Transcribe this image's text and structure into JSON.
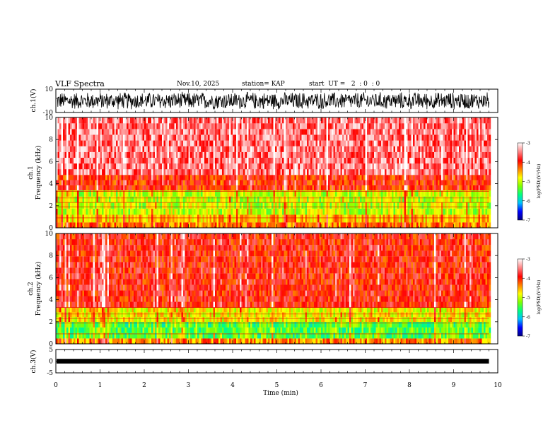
{
  "header": {
    "title": "VLF Spectra",
    "date": "Nov.10, 2025",
    "station": "station= KAP",
    "start_ut": "start  UT =   2  : 0  : 0"
  },
  "colors": {
    "colorbar_stops": [
      "#000080",
      "#0000ff",
      "#00c0ff",
      "#00ff80",
      "#80ff00",
      "#ffff00",
      "#ff8000",
      "#ff0000",
      "#ff8080",
      "#ffffff"
    ]
  },
  "chart_data": [
    {
      "id": "ch1-waveform",
      "type": "line",
      "ylabel": "ch.1(V)",
      "ylim": [
        -10,
        10
      ],
      "yticks": [
        "10",
        "-10"
      ],
      "xlim": [
        0,
        10
      ],
      "description_level": "dense waveform oscillating roughly between -8 and 8 V over 0 to 9.8 min"
    },
    {
      "id": "ch1-spectrogram",
      "type": "heatmap",
      "ylabel": "ch.1\nFrequency (kHz)",
      "ylabel_line1": "ch.1",
      "ylabel_line2": "Frequency  (kHz)",
      "ylim": [
        0,
        10
      ],
      "yticks": [
        "0",
        "2",
        "4",
        "6",
        "8",
        "10"
      ],
      "xlim": [
        0,
        10
      ],
      "data_end_min": 9.8,
      "bands": [
        {
          "from_khz": 0.0,
          "to_khz": 0.5,
          "level": -4.3
        },
        {
          "from_khz": 0.5,
          "to_khz": 1.2,
          "level": -4.6
        },
        {
          "from_khz": 1.2,
          "to_khz": 3.4,
          "level": -5.0
        },
        {
          "from_khz": 3.4,
          "to_khz": 4.8,
          "level": -4.0
        },
        {
          "from_khz": 4.8,
          "to_khz": 10.0,
          "level": -3.5
        }
      ],
      "colorbar": {
        "label": "log(PSD)(V²/Hz)",
        "ticks": [
          "-3",
          "-4",
          "-5",
          "-6",
          "-7"
        ],
        "range": [
          -7,
          -3
        ]
      }
    },
    {
      "id": "ch2-spectrogram",
      "type": "heatmap",
      "ylabel_line1": "ch.2",
      "ylabel_line2": "Frequency  (kHz)",
      "ylim": [
        0,
        10
      ],
      "yticks": [
        "0",
        "2",
        "4",
        "6",
        "8",
        "10"
      ],
      "xlim": [
        0,
        10
      ],
      "data_end_min": 9.8,
      "bands": [
        {
          "from_khz": 0.0,
          "to_khz": 0.5,
          "level": -4.4
        },
        {
          "from_khz": 0.5,
          "to_khz": 2.0,
          "level": -5.4
        },
        {
          "from_khz": 2.0,
          "to_khz": 3.3,
          "level": -4.8
        },
        {
          "from_khz": 3.3,
          "to_khz": 10.0,
          "level": -3.9
        }
      ],
      "colorbar": {
        "label": "log(PSD)(V²/Hz)",
        "ticks": [
          "-3",
          "-4",
          "-5",
          "-6",
          "-7"
        ],
        "range": [
          -7,
          -3
        ]
      }
    },
    {
      "id": "ch3-waveform",
      "type": "line",
      "ylabel": "ch.3(V)",
      "ylim": [
        -5,
        5
      ],
      "yticks": [
        "5",
        "0",
        "-5"
      ],
      "xlim": [
        0,
        10
      ],
      "level_v": 0,
      "spread_v": 0.5
    }
  ],
  "xaxis": {
    "label": "Time  (min)",
    "ticks": [
      "0",
      "1",
      "2",
      "3",
      "4",
      "5",
      "6",
      "7",
      "8",
      "9",
      "10"
    ]
  }
}
